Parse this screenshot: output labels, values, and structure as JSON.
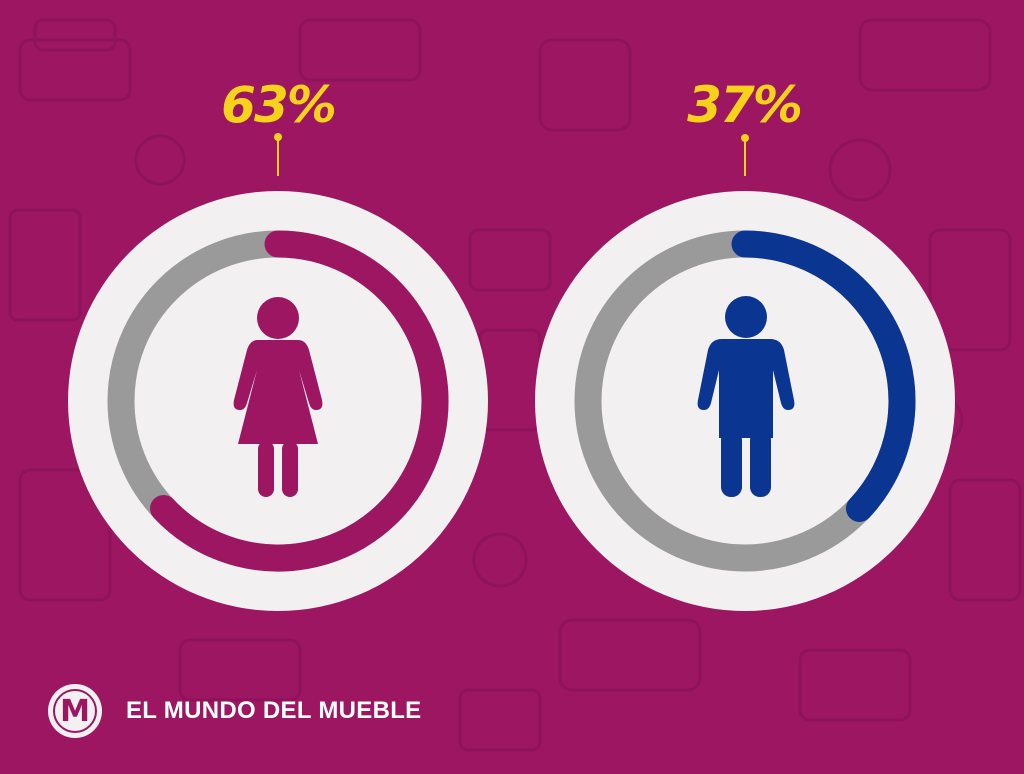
{
  "colors": {
    "background": "#9c1662",
    "circle_outer": "#f2f0f1",
    "track": "#9a9a9a",
    "accent_percent": "#f7d21a",
    "women": "#9c1662",
    "men": "#0a3591"
  },
  "chart_data": {
    "type": "donut",
    "series": [
      {
        "category": "women",
        "value": 63,
        "label": "63%",
        "color": "#9c1662",
        "icon": "woman-icon"
      },
      {
        "category": "men",
        "value": 37,
        "label": "37%",
        "color": "#0a3591",
        "icon": "man-icon"
      }
    ]
  },
  "labels": {
    "women_percent": "63%",
    "men_percent": "37%"
  },
  "brand": {
    "logo_letter": "M",
    "name": "EL MUNDO DEL MUEBLE"
  }
}
